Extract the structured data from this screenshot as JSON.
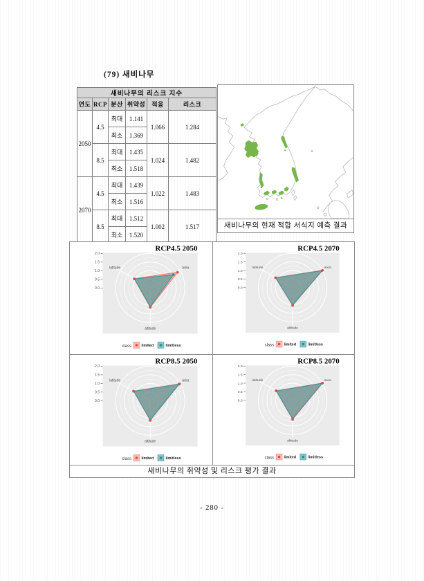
{
  "page": {
    "title": "(79) 새비나무",
    "page_number": "- 280 -"
  },
  "risk_table": {
    "title": "새비나무의 리스크 지수",
    "columns": [
      "연도",
      "RCP",
      "분산",
      "취약성",
      "적응",
      "리스크"
    ],
    "groups": [
      {
        "year": "2050",
        "rcps": [
          {
            "rcp": "4.5",
            "adaptation": "1.066",
            "risk": "1.284",
            "rows": [
              {
                "label": "최대",
                "value": "1.141"
              },
              {
                "label": "최소",
                "value": "1.369"
              }
            ]
          },
          {
            "rcp": "8.5",
            "adaptation": "1.024",
            "risk": "1.482",
            "rows": [
              {
                "label": "최대",
                "value": "1.435"
              },
              {
                "label": "최소",
                "value": "1.518"
              }
            ]
          }
        ]
      },
      {
        "year": "2070",
        "rcps": [
          {
            "rcp": "4.5",
            "adaptation": "1.022",
            "risk": "1.483",
            "rows": [
              {
                "label": "최대",
                "value": "1.439"
              },
              {
                "label": "최소",
                "value": "1.516"
              }
            ]
          },
          {
            "rcp": "8.5",
            "adaptation": "1.002",
            "risk": "1.517",
            "rows": [
              {
                "label": "최대",
                "value": "1.512"
              },
              {
                "label": "최소",
                "value": "1.520"
              }
            ]
          }
        ]
      }
    ]
  },
  "map": {
    "caption": "새비나무의 현재 적합 서식지 예측 결과",
    "habitat_color": "#76B64A",
    "coast_color": "#b5b5b5"
  },
  "charts": {
    "caption": "새비나무의 취약성 및 리스크 평가 결과",
    "legend_title": "class"
  },
  "chart_data": [
    {
      "type": "radar",
      "title": "RCP4.5 2050",
      "axes": [
        "latitude",
        "area",
        "altitude"
      ],
      "axis_angles_deg": [
        150,
        30,
        270
      ],
      "radial_ticks": [
        2.0,
        1.5,
        1.0,
        0.5,
        0.0
      ],
      "radial_range": [
        0,
        2
      ],
      "legend_title": "class",
      "series": [
        {
          "name": "limited",
          "color": "#F8766D",
          "point_color": "#E04B40",
          "values": [
            1.07,
            1.82,
            1.12
          ]
        },
        {
          "name": "limitless",
          "color": "#2E9C9E",
          "point_color": "#1E9296",
          "values": [
            1.05,
            1.55,
            1.08
          ]
        }
      ]
    },
    {
      "type": "radar",
      "title": "RCP4.5 2070",
      "axes": [
        "latitude",
        "area",
        "altitude"
      ],
      "axis_angles_deg": [
        150,
        30,
        270
      ],
      "radial_ticks": [
        2.0,
        1.5,
        1.0,
        0.5,
        0.0
      ],
      "radial_range": [
        0,
        2
      ],
      "legend_title": "class",
      "series": [
        {
          "name": "limited",
          "color": "#F8766D",
          "point_color": "#E04B40",
          "values": [
            1.16,
            2.02,
            1.05
          ]
        },
        {
          "name": "limitless",
          "color": "#2E9C9E",
          "point_color": "#1E9296",
          "values": [
            1.14,
            1.98,
            1.02
          ]
        }
      ]
    },
    {
      "type": "radar",
      "title": "RCP8.5 2050",
      "axes": [
        "latitude",
        "area",
        "altitude"
      ],
      "axis_angles_deg": [
        150,
        30,
        270
      ],
      "radial_ticks": [
        2.0,
        1.5,
        1.0,
        0.5,
        0.0
      ],
      "radial_range": [
        0,
        2
      ],
      "legend_title": "class",
      "series": [
        {
          "name": "limited",
          "color": "#F8766D",
          "point_color": "#E04B40",
          "values": [
            1.12,
            1.96,
            1.14
          ]
        },
        {
          "name": "limitless",
          "color": "#2E9C9E",
          "point_color": "#1E9296",
          "values": [
            1.1,
            1.92,
            1.1
          ]
        }
      ]
    },
    {
      "type": "radar",
      "title": "RCP8.5 2070",
      "axes": [
        "latitude",
        "area",
        "altitude"
      ],
      "axis_angles_deg": [
        150,
        30,
        270
      ],
      "radial_ticks": [
        2.0,
        1.5,
        1.0,
        0.5,
        0.0
      ],
      "radial_range": [
        0,
        2
      ],
      "legend_title": "class",
      "series": [
        {
          "name": "limited",
          "color": "#F8766D",
          "point_color": "#E04B40",
          "values": [
            1.12,
            2.02,
            1.12
          ]
        },
        {
          "name": "limitless",
          "color": "#2E9C9E",
          "point_color": "#1E9296",
          "values": [
            1.1,
            1.98,
            1.08
          ]
        }
      ]
    }
  ]
}
